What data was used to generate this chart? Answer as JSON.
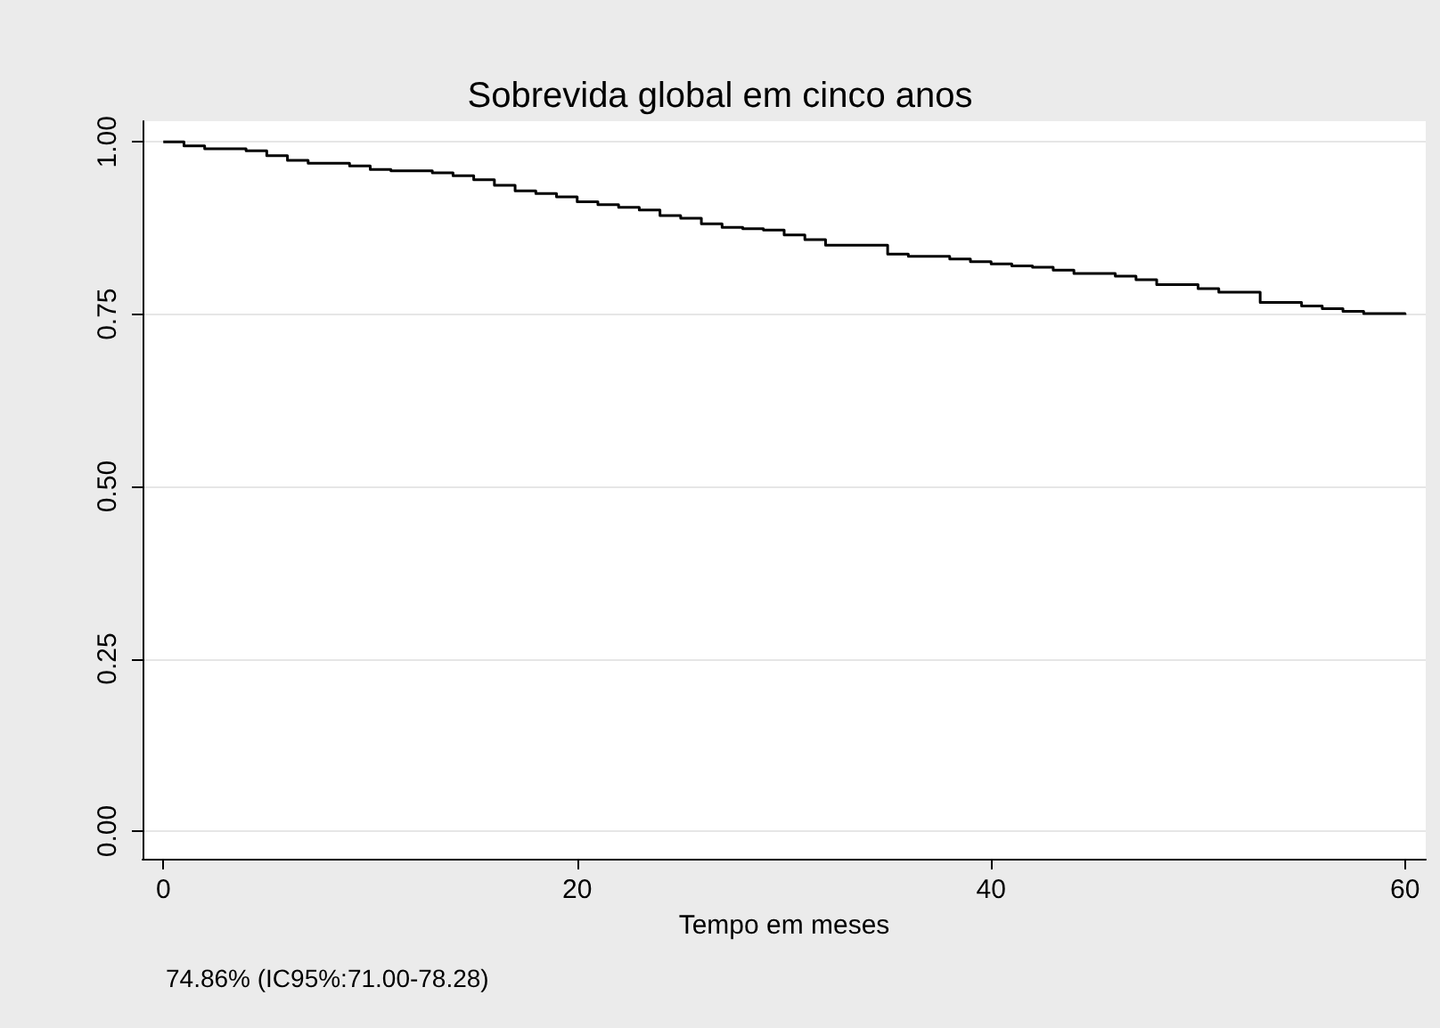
{
  "chart_data": {
    "type": "step",
    "title": "Sobrevida global em cinco anos",
    "xlabel": "Tempo em meses",
    "annotations": [
      "74.86% (IC95%:71.00-78.28)"
    ],
    "x": [
      0,
      1,
      2,
      4,
      5,
      6,
      7,
      9,
      10,
      11,
      13,
      14,
      15,
      16,
      17,
      18,
      19,
      20,
      21,
      22,
      23,
      24,
      25,
      26,
      27,
      28,
      29,
      30,
      31,
      32,
      35,
      36,
      38,
      39,
      40,
      41,
      42,
      43,
      44,
      46,
      47,
      48,
      50,
      51,
      53,
      55,
      56,
      57,
      58,
      60
    ],
    "series": [
      {
        "color": "#000000",
        "values": [
          1.0,
          0.994,
          0.99,
          0.987,
          0.98,
          0.973,
          0.969,
          0.965,
          0.96,
          0.958,
          0.955,
          0.951,
          0.945,
          0.937,
          0.929,
          0.925,
          0.92,
          0.913,
          0.909,
          0.905,
          0.901,
          0.893,
          0.889,
          0.881,
          0.876,
          0.874,
          0.872,
          0.865,
          0.858,
          0.85,
          0.837,
          0.834,
          0.83,
          0.826,
          0.823,
          0.82,
          0.818,
          0.814,
          0.809,
          0.805,
          0.8,
          0.793,
          0.787,
          0.782,
          0.767,
          0.762,
          0.758,
          0.754,
          0.751,
          0.749
        ]
      }
    ],
    "xlim": [
      -1,
      61
    ],
    "xticks": [
      0,
      20,
      40,
      60
    ],
    "ylim": [
      -0.04,
      1.03
    ],
    "yticks": [
      {
        "value": 0,
        "label": "0.00"
      },
      {
        "value": 0.25,
        "label": "0.25"
      },
      {
        "value": 0.5,
        "label": "0.50"
      },
      {
        "value": 0.75,
        "label": "0.75"
      },
      {
        "value": 1,
        "label": "1.00"
      }
    ],
    "grid": "y",
    "marker": "none",
    "line_style": "solid"
  }
}
